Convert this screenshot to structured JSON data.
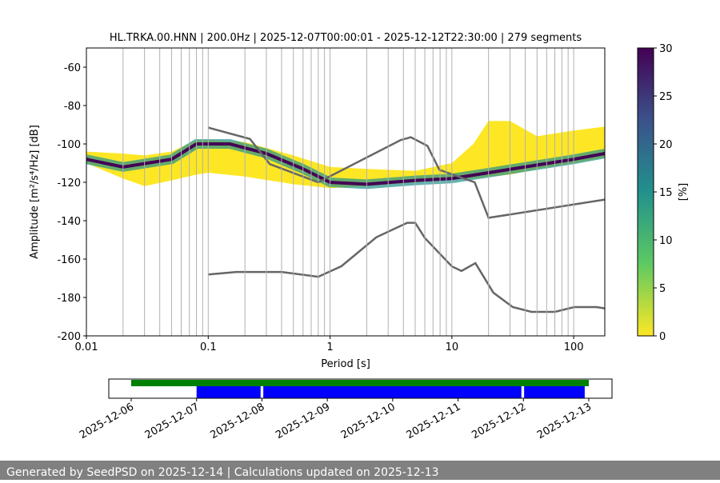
{
  "chart_data": [
    {
      "type": "line",
      "title": "HL.TRKA.00.HNN | 200.0Hz | 2025-12-07T00:00:01 - 2025-12-12T22:30:00 | 279 segments",
      "x_label": "Period [s]",
      "y_label": "Amplitude [m²/s⁴/Hz] [dB]",
      "xscale": "log",
      "xlim": [
        0.01,
        180
      ],
      "ylim": [
        -200,
        -50
      ],
      "xticks": [
        0.01,
        0.1,
        1,
        10,
        100
      ],
      "x_minor_ticks": [
        0.02,
        0.03,
        0.04,
        0.05,
        0.06,
        0.07,
        0.08,
        0.09,
        0.2,
        0.3,
        0.4,
        0.5,
        0.6,
        0.7,
        0.8,
        0.9,
        2,
        3,
        4,
        5,
        6,
        7,
        8,
        9,
        20,
        30,
        40,
        50,
        60,
        70,
        80,
        90
      ],
      "yticks": [
        -200,
        -180,
        -160,
        -140,
        -120,
        -100,
        -80,
        -60
      ],
      "grid": true,
      "series": [
        {
          "kind": "area",
          "color": "#fde725",
          "x": [
            0.01,
            0.02,
            0.03,
            0.05,
            0.08,
            0.1,
            0.2,
            0.5,
            1,
            2,
            5,
            10,
            15,
            20,
            30,
            50,
            100,
            180
          ],
          "high": [
            -104,
            -105,
            -106,
            -104,
            -98,
            -98,
            -99,
            -106,
            -112,
            -113,
            -114,
            -110,
            -100,
            -88,
            -88,
            -96,
            -93,
            -91
          ],
          "low": [
            -110,
            -118,
            -122,
            -119,
            -116,
            -115,
            -117,
            -121,
            -123,
            -122,
            -120,
            -118,
            -118,
            -117,
            -116,
            -113,
            -110,
            -107
          ]
        },
        {
          "kind": "line",
          "color": "#440154",
          "x": [
            0.01,
            0.02,
            0.05,
            0.08,
            0.15,
            0.3,
            0.6,
            1,
            2,
            5,
            10,
            20,
            50,
            100,
            180
          ],
          "values": [
            -108,
            -112,
            -108,
            -100,
            -100,
            -105,
            -113,
            -120,
            -121,
            -119,
            -118,
            -115,
            -111,
            -108,
            -105
          ]
        },
        {
          "kind": "line",
          "color": "#666666",
          "x": [
            0.1,
            0.22,
            0.32,
            0.8,
            3.8,
            4.6,
            6.3,
            7.9,
            15.4,
            20,
            180
          ],
          "values": [
            -91.5,
            -97.4,
            -110.5,
            -120,
            -98,
            -96.5,
            -101,
            -113.5,
            -120,
            -138.5,
            -129
          ]
        },
        {
          "kind": "line",
          "color": "#666666",
          "x": [
            0.1,
            0.17,
            0.4,
            0.8,
            1.24,
            2.4,
            4.3,
            5,
            6,
            10,
            12,
            15.6,
            21.9,
            31.6,
            45,
            70,
            101,
            154,
            180
          ],
          "values": [
            -168,
            -166.7,
            -166.7,
            -169.2,
            -163.7,
            -148.6,
            -141.1,
            -141.1,
            -149,
            -163.8,
            -166.2,
            -162.1,
            -177.5,
            -185,
            -187.5,
            -187.5,
            -185,
            -185,
            -185.7
          ]
        }
      ],
      "colorbar": {
        "label": "[%]",
        "lim": [
          0,
          30
        ],
        "ticks": [
          0,
          5,
          10,
          15,
          20,
          25,
          30
        ]
      }
    },
    {
      "type": "timeline",
      "xticks": [
        "2025-12-06",
        "2025-12-07",
        "2025-12-08",
        "2025-12-09",
        "2025-12-10",
        "2025-12-11",
        "2025-12-12",
        "2025-12-13"
      ],
      "bars": [
        {
          "row": 0,
          "color": "#008000",
          "start": "2025-12-06T00:00",
          "end": "2025-12-13T00:00"
        },
        {
          "row": 1,
          "color": "#0000ff",
          "start": "2025-12-07T00:00",
          "end": "2025-12-07T23:30"
        },
        {
          "row": 1,
          "color": "#0000ff",
          "start": "2025-12-08T00:30",
          "end": "2025-12-11T23:15"
        },
        {
          "row": 1,
          "color": "#0000ff",
          "start": "2025-12-12T00:15",
          "end": "2025-12-12T22:30"
        }
      ]
    }
  ],
  "footer": "Generated by SeedPSD on 2025-12-14 | Calculations updated on 2025-12-13"
}
